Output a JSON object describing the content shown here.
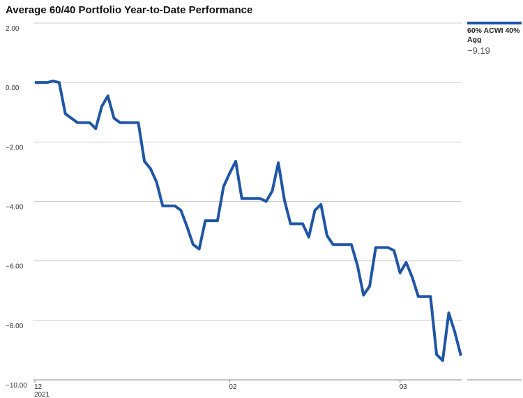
{
  "chart_data": {
    "type": "line",
    "title": "Average 60/40 Portfolio Year-to-Date Performance",
    "categories": [
      "12",
      null,
      null,
      null,
      null,
      null,
      null,
      null,
      null,
      null,
      null,
      null,
      null,
      null,
      null,
      null,
      null,
      null,
      null,
      null,
      null,
      null,
      null,
      null,
      null,
      null,
      null,
      null,
      null,
      null,
      null,
      null,
      "02",
      null,
      null,
      null,
      null,
      null,
      null,
      null,
      null,
      null,
      null,
      null,
      null,
      null,
      null,
      null,
      null,
      null,
      null,
      null,
      null,
      null,
      null,
      null,
      null,
      null,
      null,
      null,
      "03",
      null,
      null,
      null,
      null,
      null,
      null,
      null,
      null,
      null,
      null
    ],
    "year_label": "2021",
    "series": [
      {
        "name": "60% ACWI 40% Agg",
        "color": "#1f55a5",
        "last_value_label": "−9.19",
        "values": [
          0,
          0,
          0,
          0.05,
          0,
          -1.05,
          -1.2,
          -1.35,
          -1.35,
          -1.35,
          -1.55,
          -0.8,
          -0.45,
          -1.2,
          -1.35,
          -1.35,
          -1.35,
          -1.35,
          -2.65,
          -2.9,
          -3.35,
          -4.15,
          -4.15,
          -4.15,
          -4.3,
          -4.85,
          -5.45,
          -5.6,
          -4.65,
          -4.65,
          -4.65,
          -3.5,
          -3.05,
          -2.65,
          -3.9,
          -3.9,
          -3.9,
          -3.9,
          -4.0,
          -3.65,
          -2.7,
          -3.95,
          -4.75,
          -4.75,
          -4.75,
          -5.2,
          -4.3,
          -4.1,
          -5.15,
          -5.45,
          -5.45,
          -5.45,
          -5.45,
          -6.15,
          -7.15,
          -6.85,
          -5.55,
          -5.55,
          -5.55,
          -5.65,
          -6.4,
          -6.05,
          -6.55,
          -7.2,
          -7.2,
          -7.2,
          -9.15,
          -9.35,
          -7.75,
          -8.4,
          -9.19
        ]
      }
    ],
    "ylim": [
      -10,
      2
    ],
    "yticks": [
      {
        "value": 2,
        "label": "2.00"
      },
      {
        "value": 0,
        "label": "0.00"
      },
      {
        "value": -2,
        "label": "−2.00"
      },
      {
        "value": -4,
        "label": "−4.00"
      },
      {
        "value": -6,
        "label": "−6.00"
      },
      {
        "value": -8,
        "label": "−8.00"
      },
      {
        "value": -10,
        "label": "−10.00"
      }
    ],
    "grid": true
  }
}
